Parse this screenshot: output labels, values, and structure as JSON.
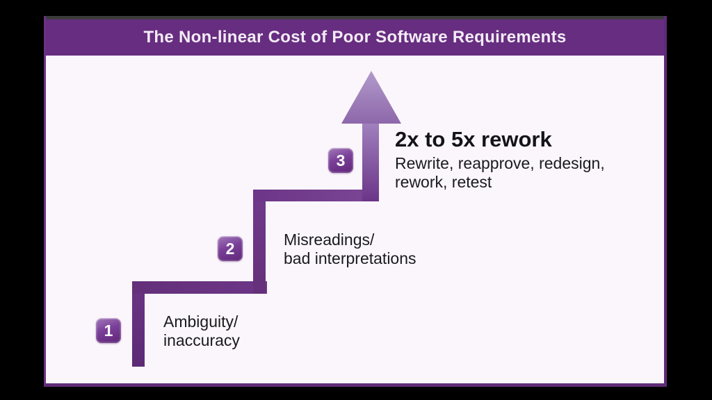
{
  "header": {
    "title": "The Non-linear Cost of Poor Software Requirements"
  },
  "steps": [
    {
      "number": "1",
      "lines": [
        "Ambiguity/",
        "inaccuracy"
      ]
    },
    {
      "number": "2",
      "lines": [
        "Misreadings/",
        "bad interpretations"
      ]
    },
    {
      "number": "3",
      "heading": "2x to 5x rework",
      "detail_lines": [
        "Rewrite, reapprove, redesign,",
        "rework, retest"
      ]
    }
  ],
  "colors": {
    "letterbox_background": "#000000",
    "header_background": "#672d80",
    "canvas_background": "#fbf6fb",
    "frame_border_purple": "#5f2b78",
    "stair_purple_dark": "#5d2a75",
    "stair_purple_mid": "#6d3588",
    "arrow_light_purple": "#b29bcb",
    "badge_gradient_start": "#a37bbb",
    "badge_gradient_end": "#5e2677",
    "title_text": "#f3ecf6",
    "body_text": "#1a1a1f"
  }
}
